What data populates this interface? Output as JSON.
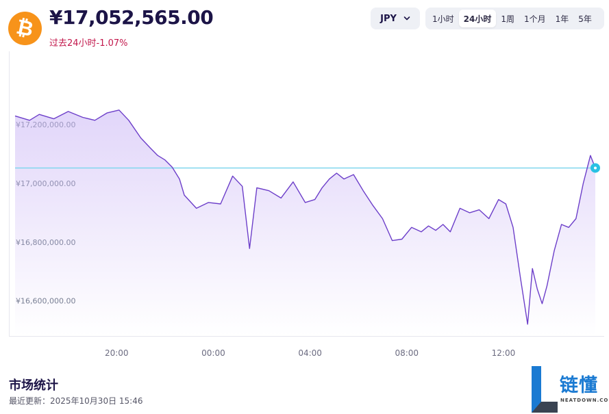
{
  "asset": {
    "icon": "bitcoin-icon",
    "symbol": "₿"
  },
  "price": "¥17,052,565.00",
  "change": {
    "label": "过去24小时",
    "value": "-1.07%",
    "color": "#c2174b"
  },
  "currency": {
    "selected": "JPY"
  },
  "ranges": [
    "1小时",
    "24小时",
    "1周",
    "1个月",
    "1年",
    "5年"
  ],
  "active_range": "24小时",
  "chart_data": {
    "type": "line",
    "title": "",
    "xlabel": "",
    "ylabel": "",
    "x_tick_labels": [
      "20:00",
      "00:00",
      "04:00",
      "08:00",
      "12:00"
    ],
    "y_tick_labels": [
      "¥17,200,000.00",
      "¥17,000,000.00",
      "¥16,800,000.00",
      "¥16,600,000.00"
    ],
    "ylim": [
      16480000,
      17450000
    ],
    "reference_line": {
      "value": 17052565,
      "color": "#7fd6ee"
    },
    "line_color": "#6c3ec9",
    "marker_color": "#29c1e3",
    "series": [
      {
        "x_hours": [
          0,
          0.6,
          1.0,
          1.6,
          2.2,
          2.8,
          3.3,
          3.8,
          4.3,
          4.7,
          5.2,
          5.6,
          5.9,
          6.2,
          6.5,
          6.8,
          7.0,
          7.5,
          8.0,
          8.5,
          9.0,
          9.4,
          9.7,
          10.0,
          10.5,
          11.0,
          11.5,
          12.0,
          12.4,
          12.7,
          13.0,
          13.3,
          13.6,
          14.0,
          14.4,
          14.8,
          15.2,
          15.6,
          16.0,
          16.4,
          16.8,
          17.1,
          17.4,
          17.7,
          18.0,
          18.4,
          18.8,
          19.2,
          19.6,
          20.0,
          20.3,
          20.6,
          20.9,
          21.2,
          21.4,
          21.6,
          21.8,
          22.0,
          22.3,
          22.6,
          22.9,
          23.2,
          23.5,
          23.8,
          24.0
        ],
        "y_values": [
          17230000,
          17215000,
          17235000,
          17220000,
          17245000,
          17225000,
          17215000,
          17240000,
          17250000,
          17215000,
          17155000,
          17120000,
          17095000,
          17080000,
          17055000,
          17015000,
          16960000,
          16915000,
          16935000,
          16930000,
          17025000,
          16990000,
          16778000,
          16985000,
          16975000,
          16950000,
          17005000,
          16935000,
          16945000,
          16985000,
          17015000,
          17035000,
          17015000,
          17030000,
          16975000,
          16925000,
          16880000,
          16805000,
          16810000,
          16850000,
          16835000,
          16855000,
          16840000,
          16860000,
          16835000,
          16915000,
          16900000,
          16910000,
          16880000,
          16945000,
          16930000,
          16850000,
          16680000,
          16520000,
          16710000,
          16640000,
          16590000,
          16650000,
          16770000,
          16860000,
          16850000,
          16880000,
          17000000,
          17095000,
          17052565
        ]
      }
    ]
  },
  "stats": {
    "title": "市场统计",
    "updated": "最近更新：2025年10月30日 15:46"
  },
  "brand": {
    "name": "链懂",
    "domain": "NEATDOWN.COM"
  }
}
